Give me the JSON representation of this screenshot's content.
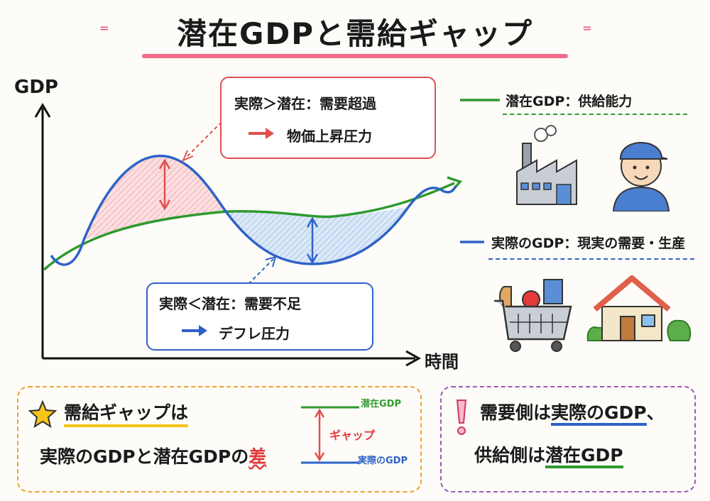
{
  "title": "潜在GDPと需給ギャップ",
  "chart": {
    "y_label": "GDP",
    "x_label": "時間"
  },
  "boxes": {
    "excess": {
      "line1": "実際＞潜在：需要超過",
      "line2": "物価上昇圧力"
    },
    "shortage": {
      "line1": "実際＜潜在：需要不足",
      "line2": "デフレ圧力"
    }
  },
  "legend": {
    "potential": "潜在GDP：供給能力",
    "actual": "実際のGDP：現実の需要・生産"
  },
  "bottom_left": {
    "heading": "需給ギャップは",
    "line2_a": "実際のGDPと潜在GDPの",
    "line2_b": "差",
    "mini_top": "潜在GDP",
    "mini_gap": "ギャップ",
    "mini_bottom": "実際のGDP"
  },
  "bottom_right": {
    "line1_a": "需要側は",
    "line1_b": "実際のGDP",
    "line1_c": "、",
    "line2_a": "供給側は",
    "line2_b": "潜在GDP"
  },
  "icons": [
    "star-icon",
    "exclamation-icon",
    "factory-icon",
    "worker-icon",
    "shopping-cart-icon",
    "house-icon"
  ],
  "colors": {
    "potential": "#2f9a2f",
    "actual": "#2f62c8",
    "excess": "#e05050",
    "title_accent": "#f06a8a"
  }
}
